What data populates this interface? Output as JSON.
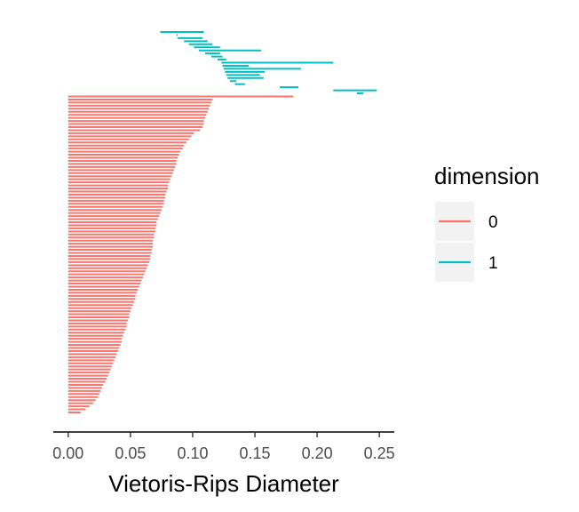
{
  "chart_data": {
    "type": "barcode",
    "xlabel": "Vietoris-Rips Diameter",
    "ylabel": "",
    "title": "",
    "xlim": [
      -0.012,
      0.262
    ],
    "x_ticks": [
      0.0,
      0.05,
      0.1,
      0.15,
      0.2,
      0.25
    ],
    "x_tick_labels": [
      "0.00",
      "0.05",
      "0.10",
      "0.15",
      "0.20",
      "0.25"
    ],
    "legend": {
      "title": "dimension",
      "position": "right",
      "entries": [
        {
          "label": "0",
          "color": "#F8766D"
        },
        {
          "label": "1",
          "color": "#00BFC4"
        }
      ]
    },
    "series": [
      {
        "name": "0",
        "color": "#F8766D",
        "intervals": [
          [
            0.0,
            0.181
          ],
          [
            0.0,
            0.116
          ],
          [
            0.0,
            0.115
          ],
          [
            0.0,
            0.114
          ],
          [
            0.0,
            0.113
          ],
          [
            0.0,
            0.112
          ],
          [
            0.0,
            0.111
          ],
          [
            0.0,
            0.11
          ],
          [
            0.0,
            0.109
          ],
          [
            0.0,
            0.109
          ],
          [
            0.0,
            0.108
          ],
          [
            0.0,
            0.106
          ],
          [
            0.0,
            0.101
          ],
          [
            0.0,
            0.099
          ],
          [
            0.0,
            0.097
          ],
          [
            0.0,
            0.095
          ],
          [
            0.0,
            0.093
          ],
          [
            0.0,
            0.092
          ],
          [
            0.0,
            0.09
          ],
          [
            0.0,
            0.089
          ],
          [
            0.0,
            0.088
          ],
          [
            0.0,
            0.087
          ],
          [
            0.0,
            0.087
          ],
          [
            0.0,
            0.086
          ],
          [
            0.0,
            0.085
          ],
          [
            0.0,
            0.084
          ],
          [
            0.0,
            0.083
          ],
          [
            0.0,
            0.082
          ],
          [
            0.0,
            0.081
          ],
          [
            0.0,
            0.08
          ],
          [
            0.0,
            0.08
          ],
          [
            0.0,
            0.079
          ],
          [
            0.0,
            0.078
          ],
          [
            0.0,
            0.078
          ],
          [
            0.0,
            0.077
          ],
          [
            0.0,
            0.077
          ],
          [
            0.0,
            0.076
          ],
          [
            0.0,
            0.075
          ],
          [
            0.0,
            0.074
          ],
          [
            0.0,
            0.073
          ],
          [
            0.0,
            0.072
          ],
          [
            0.0,
            0.071
          ],
          [
            0.0,
            0.071
          ],
          [
            0.0,
            0.07
          ],
          [
            0.0,
            0.07
          ],
          [
            0.0,
            0.069
          ],
          [
            0.0,
            0.069
          ],
          [
            0.0,
            0.068
          ],
          [
            0.0,
            0.068
          ],
          [
            0.0,
            0.068
          ],
          [
            0.0,
            0.067
          ],
          [
            0.0,
            0.067
          ],
          [
            0.0,
            0.066
          ],
          [
            0.0,
            0.066
          ],
          [
            0.0,
            0.065
          ],
          [
            0.0,
            0.064
          ],
          [
            0.0,
            0.063
          ],
          [
            0.0,
            0.062
          ],
          [
            0.0,
            0.061
          ],
          [
            0.0,
            0.06
          ],
          [
            0.0,
            0.059
          ],
          [
            0.0,
            0.058
          ],
          [
            0.0,
            0.057
          ],
          [
            0.0,
            0.056
          ],
          [
            0.0,
            0.055
          ],
          [
            0.0,
            0.054
          ],
          [
            0.0,
            0.054
          ],
          [
            0.0,
            0.053
          ],
          [
            0.0,
            0.052
          ],
          [
            0.0,
            0.051
          ],
          [
            0.0,
            0.05
          ],
          [
            0.0,
            0.049
          ],
          [
            0.0,
            0.049
          ],
          [
            0.0,
            0.048
          ],
          [
            0.0,
            0.047
          ],
          [
            0.0,
            0.047
          ],
          [
            0.0,
            0.046
          ],
          [
            0.0,
            0.045
          ],
          [
            0.0,
            0.044
          ],
          [
            0.0,
            0.043
          ],
          [
            0.0,
            0.043
          ],
          [
            0.0,
            0.042
          ],
          [
            0.0,
            0.041
          ],
          [
            0.0,
            0.04
          ],
          [
            0.0,
            0.039
          ],
          [
            0.0,
            0.038
          ],
          [
            0.0,
            0.037
          ],
          [
            0.0,
            0.036
          ],
          [
            0.0,
            0.035
          ],
          [
            0.0,
            0.034
          ],
          [
            0.0,
            0.033
          ],
          [
            0.0,
            0.032
          ],
          [
            0.0,
            0.031
          ],
          [
            0.0,
            0.03
          ],
          [
            0.0,
            0.028
          ],
          [
            0.0,
            0.027
          ],
          [
            0.0,
            0.026
          ],
          [
            0.0,
            0.025
          ],
          [
            0.0,
            0.024
          ],
          [
            0.0,
            0.022
          ],
          [
            0.0,
            0.02
          ],
          [
            0.0,
            0.017
          ],
          [
            0.0,
            0.014
          ],
          [
            0.0,
            0.01
          ]
        ]
      },
      {
        "name": "1",
        "color": "#00BFC4",
        "intervals": [
          [
            0.074,
            0.109
          ],
          [
            0.087,
            0.088
          ],
          [
            0.088,
            0.108
          ],
          [
            0.093,
            0.112
          ],
          [
            0.097,
            0.116
          ],
          [
            0.101,
            0.122
          ],
          [
            0.105,
            0.155
          ],
          [
            0.11,
            0.122
          ],
          [
            0.115,
            0.124
          ],
          [
            0.12,
            0.127
          ],
          [
            0.123,
            0.213
          ],
          [
            0.124,
            0.145
          ],
          [
            0.125,
            0.187
          ],
          [
            0.126,
            0.158
          ],
          [
            0.127,
            0.154
          ],
          [
            0.128,
            0.157
          ],
          [
            0.13,
            0.135
          ],
          [
            0.134,
            0.142
          ],
          [
            0.17,
            0.185
          ],
          [
            0.213,
            0.248
          ],
          [
            0.232,
            0.237
          ]
        ]
      }
    ]
  }
}
